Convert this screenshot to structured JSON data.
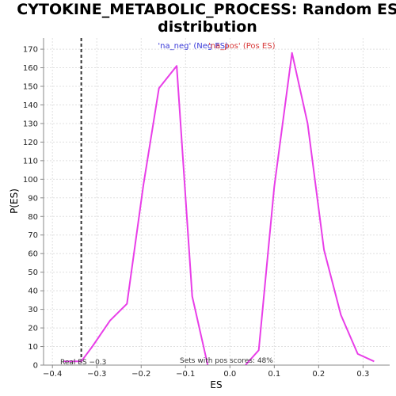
{
  "chart_data": {
    "type": "line",
    "title_line1": "CYTOKINE_METABOLIC_PROCESS: Random ES",
    "title_line2": "distribution",
    "xlabel": "ES",
    "ylabel": "P(ES)",
    "xlim": [
      -0.42,
      0.36
    ],
    "ylim": [
      0,
      176
    ],
    "xticks": [
      -0.4,
      -0.3,
      -0.2,
      -0.1,
      0.0,
      0.1,
      0.2,
      0.3
    ],
    "xtick_labels": [
      "−0.4",
      "−0.3",
      "−0.2",
      "−0.1",
      "0.0",
      "0.1",
      "0.2",
      "0.3"
    ],
    "yticks": [
      0,
      10,
      20,
      30,
      40,
      50,
      60,
      70,
      80,
      90,
      100,
      110,
      120,
      130,
      140,
      150,
      160,
      170
    ],
    "grid": true,
    "series_color": "#e83ee8",
    "series": [
      {
        "name": "'na_neg' (Neg ES)",
        "color": "#e83ee8",
        "x": [
          -0.375,
          -0.335,
          -0.31,
          -0.27,
          -0.232,
          -0.195,
          -0.16,
          -0.12,
          -0.085,
          -0.05
        ],
        "y": [
          2,
          2,
          10,
          24,
          33,
          97,
          149,
          161,
          37,
          0
        ]
      },
      {
        "name": "'na_pos' (Pos ES)",
        "color": "#e83ee8",
        "x": [
          0.035,
          0.065,
          0.1,
          0.14,
          0.175,
          0.212,
          0.25,
          0.288,
          0.325
        ],
        "y": [
          0,
          8,
          96,
          168,
          130,
          62,
          27,
          6,
          2
        ]
      }
    ],
    "legend": {
      "neg": "'na_neg' (Neg ES)",
      "pos": "'na_pos' (Pos ES)",
      "neg_color": "#3a3ad8",
      "pos_color": "#d83a3a"
    },
    "real_es": {
      "value": -0.335,
      "label": "Real ES −0.3"
    },
    "annotation": "Sets with pos scores: 48%"
  }
}
